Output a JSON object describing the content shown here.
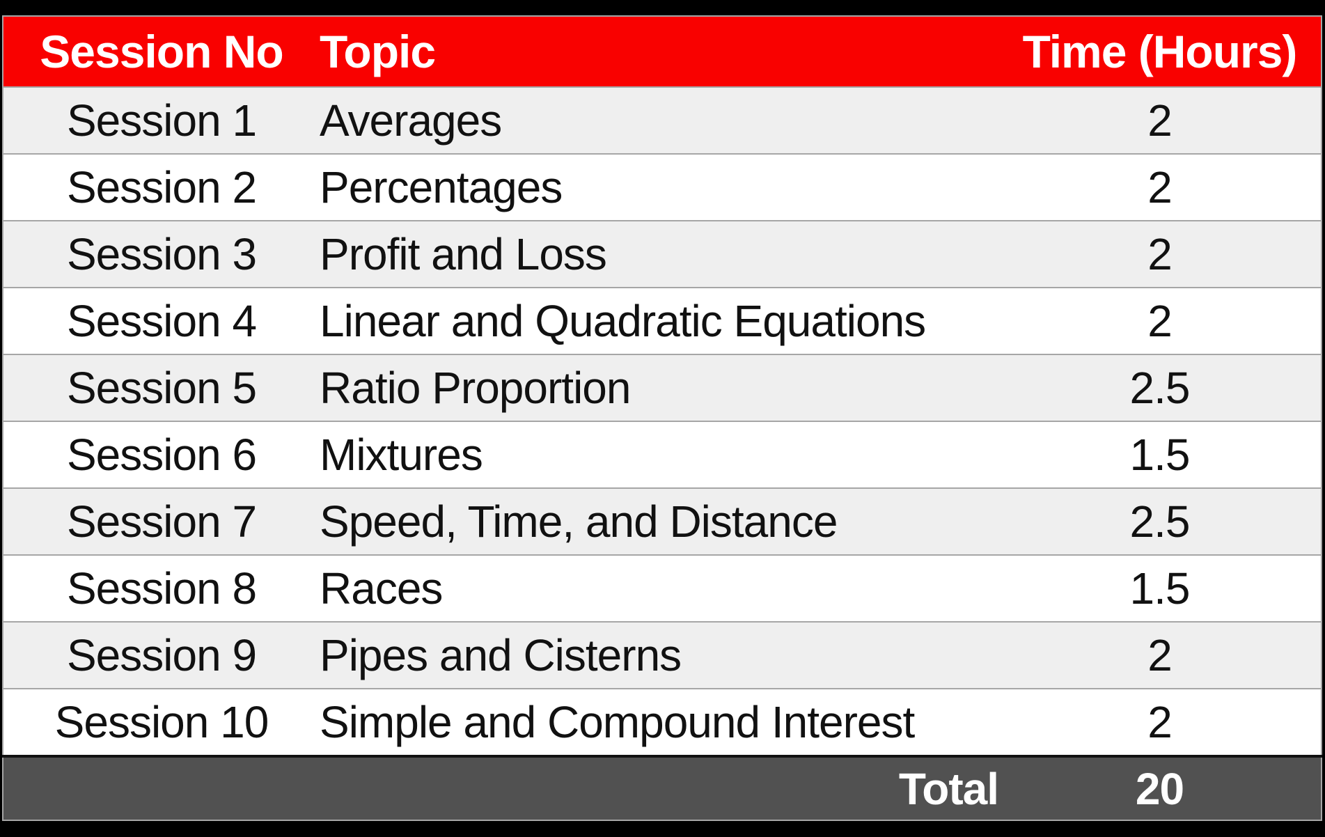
{
  "colors": {
    "header_bg": "#f90100",
    "header_text": "#ffffff",
    "row_alt_bg": "#efefef",
    "row_bg": "#ffffff",
    "body_text": "#111111",
    "border": "#a6a6a6",
    "total_bg": "#515151",
    "total_text": "#ffffff",
    "total_top_border": "#111111",
    "page_bg": "#000000"
  },
  "table": {
    "headers": {
      "session_no": "Session No",
      "topic": "Topic",
      "time": "Time (Hours)"
    },
    "rows": [
      {
        "session": "Session 1",
        "topic": "Averages",
        "time": "2"
      },
      {
        "session": "Session 2",
        "topic": "Percentages",
        "time": "2"
      },
      {
        "session": "Session 3",
        "topic": "Profit and Loss",
        "time": "2"
      },
      {
        "session": "Session 4",
        "topic": "Linear and Quadratic Equations",
        "time": "2"
      },
      {
        "session": "Session 5",
        "topic": "Ratio Proportion",
        "time": "2.5"
      },
      {
        "session": "Session 6",
        "topic": "Mixtures",
        "time": "1.5"
      },
      {
        "session": "Session 7",
        "topic": "Speed, Time, and Distance",
        "time": "2.5"
      },
      {
        "session": "Session 8",
        "topic": "Races",
        "time": "1.5"
      },
      {
        "session": "Session 9",
        "topic": "Pipes and Cisterns",
        "time": "2"
      },
      {
        "session": "Session 10",
        "topic": "Simple and Compound Interest",
        "time": "2"
      }
    ],
    "footer": {
      "label": "Total",
      "value": "20"
    }
  }
}
